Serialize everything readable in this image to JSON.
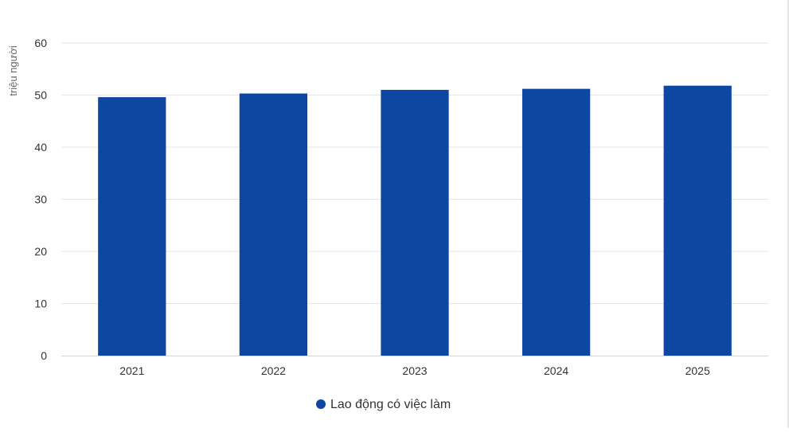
{
  "chart_data": {
    "type": "bar",
    "categories": [
      "2021",
      "2022",
      "2023",
      "2024",
      "2025"
    ],
    "series": [
      {
        "name": "Lao động có việc làm",
        "values": [
          49.6,
          50.3,
          51.0,
          51.2,
          51.8
        ],
        "color": "#0d47a1"
      }
    ],
    "title": "",
    "xlabel": "",
    "ylabel": "triệu người",
    "ylim": [
      0,
      60
    ],
    "yticks": [
      0,
      10,
      20,
      30,
      40,
      50,
      60
    ],
    "grid": true,
    "legend": "bottom-center"
  }
}
